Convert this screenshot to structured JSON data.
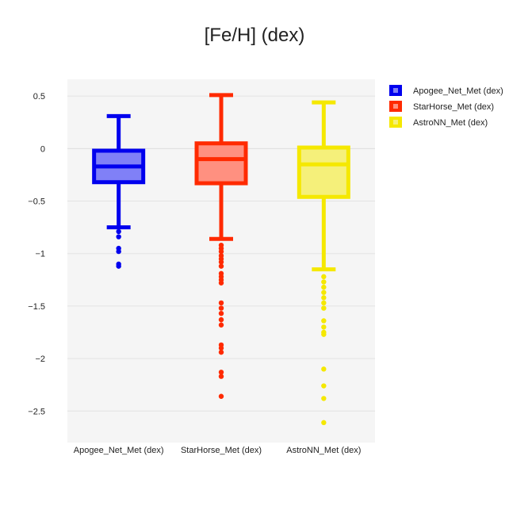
{
  "chart_data": {
    "type": "box",
    "title": "[Fe/H] (dex)",
    "xlabel": "",
    "ylabel": "",
    "ylim": [
      -2.8,
      0.66
    ],
    "yticks": [
      0.5,
      0,
      -0.5,
      -1,
      -1.5,
      -2,
      -2.5
    ],
    "ytick_labels": [
      "0.5",
      "0",
      "−0.5",
      "−1",
      "−1.5",
      "−2",
      "−2.5"
    ],
    "grid": true,
    "legend_position": "top-right",
    "categories": [
      "Apogee_Net_Met (dex)",
      "StarHorse_Met (dex)",
      "AstroNN_Met (dex)"
    ],
    "series": [
      {
        "name": "Apogee_Net_Met (dex)",
        "color": "#0000ee",
        "fill": "#8080f7",
        "q1": -0.32,
        "median": -0.17,
        "q3": -0.02,
        "whisker_low": -0.75,
        "whisker_high": 0.31,
        "outliers": [
          -0.79,
          -0.84,
          -0.95,
          -0.98,
          -1.1,
          -1.12
        ]
      },
      {
        "name": "StarHorse_Met (dex)",
        "color": "#ff2a00",
        "fill": "#ff9080",
        "q1": -0.33,
        "median": -0.1,
        "q3": 0.05,
        "whisker_low": -0.86,
        "whisker_high": 0.51,
        "outliers": [
          -0.92,
          -0.95,
          -0.98,
          -1.02,
          -1.05,
          -1.08,
          -1.12,
          -1.19,
          -1.22,
          -1.25,
          -1.28,
          -1.47,
          -1.52,
          -1.57,
          -1.63,
          -1.68,
          -1.87,
          -1.9,
          -1.94,
          -2.13,
          -2.17,
          -2.36
        ]
      },
      {
        "name": "AstroNN_Met (dex)",
        "color": "#f5e800",
        "fill": "#f5f07a",
        "q1": -0.46,
        "median": -0.15,
        "q3": 0.01,
        "whisker_low": -1.15,
        "whisker_high": 0.44,
        "outliers": [
          -1.22,
          -1.27,
          -1.32,
          -1.37,
          -1.42,
          -1.47,
          -1.52,
          -1.64,
          -1.7,
          -1.75,
          -1.77,
          -2.1,
          -2.26,
          -2.38,
          -2.61
        ]
      }
    ]
  }
}
